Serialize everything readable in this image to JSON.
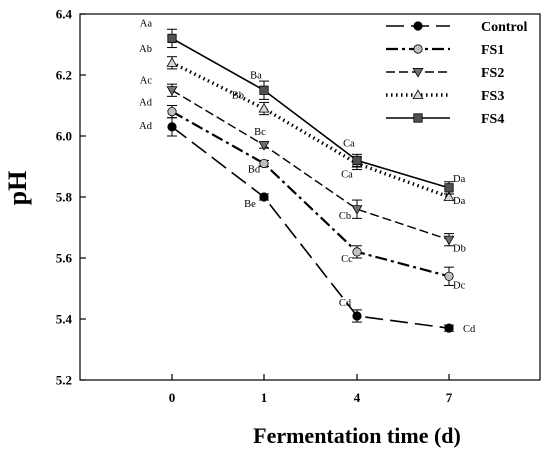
{
  "chart_data": {
    "type": "line",
    "title": "",
    "xlabel": "Fermentation time (d)",
    "ylabel": "pH",
    "categories": [
      "0",
      "1",
      "4",
      "7"
    ],
    "ylim": [
      5.2,
      6.4
    ],
    "yticks": [
      "5.2",
      "5.4",
      "5.6",
      "5.8",
      "6.0",
      "6.2",
      "6.4"
    ],
    "grid": false,
    "legend_position": "top-right",
    "series": [
      {
        "name": "Control",
        "values": [
          6.03,
          5.8,
          5.41,
          5.37
        ],
        "errors": [
          0.03,
          0.01,
          0.02,
          0.01
        ],
        "labels": [
          "Ad",
          "Be",
          "Cd",
          "Cd"
        ],
        "color": "#000000",
        "marker": "circle",
        "line": "long-dash"
      },
      {
        "name": "FS1",
        "values": [
          6.08,
          5.91,
          5.62,
          5.54
        ],
        "errors": [
          0.02,
          0.01,
          0.02,
          0.03
        ],
        "labels": [
          "Ad",
          "Bd",
          "Cc",
          "Dc"
        ],
        "color": "#c0c0c0",
        "marker": "circle",
        "line": "dash-dot"
      },
      {
        "name": "FS2",
        "values": [
          6.15,
          5.97,
          5.76,
          5.66
        ],
        "errors": [
          0.02,
          0.01,
          0.03,
          0.02
        ],
        "labels": [
          "Ac",
          "Bc",
          "Cb",
          "Db"
        ],
        "color": "#707070",
        "marker": "triangle-down",
        "line": "dash"
      },
      {
        "name": "FS3",
        "values": [
          6.24,
          6.09,
          5.91,
          5.8
        ],
        "errors": [
          0.02,
          0.02,
          0.02,
          0.01
        ],
        "labels": [
          "Ab",
          "Bb",
          "Ca",
          "Da"
        ],
        "color": "#d8d8d8",
        "marker": "triangle-up",
        "line": "dot"
      },
      {
        "name": "FS4",
        "values": [
          6.32,
          6.15,
          5.92,
          5.83
        ],
        "errors": [
          0.03,
          0.03,
          0.02,
          0.02
        ],
        "labels": [
          "Aa",
          "Ba",
          "Ca",
          "Da"
        ],
        "color": "#505050",
        "marker": "square",
        "line": "solid"
      }
    ]
  }
}
